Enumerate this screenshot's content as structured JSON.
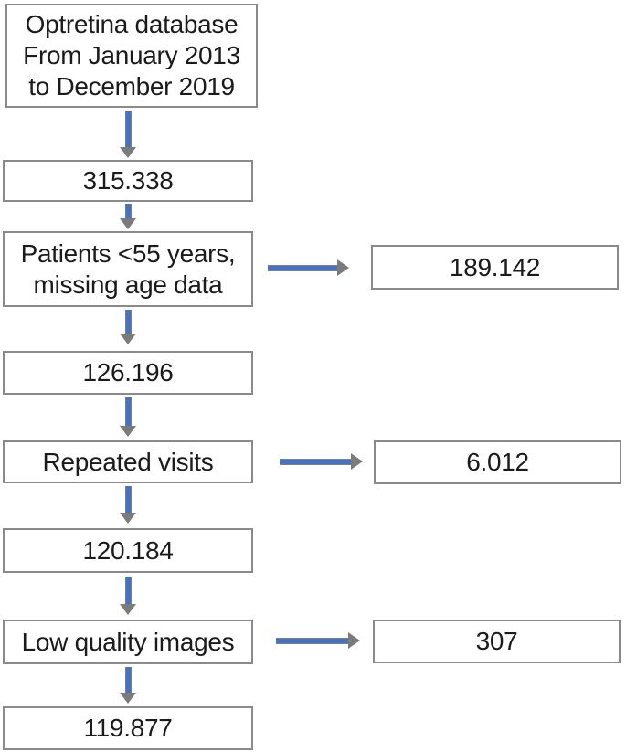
{
  "colors": {
    "arrow_fill": "#4472c4",
    "arrow_outline": "#7f7f7f",
    "box_border": "#8a8a8a",
    "text": "#1b1b1b",
    "background": "#ffffff"
  },
  "flowchart": {
    "type": "study-selection-flow",
    "main_column": [
      {
        "label": "Optretina database\nFrom January 2013\nto December 2019"
      },
      {
        "label": "315.338"
      },
      {
        "label": "Patients <55 years,\nmissing age data"
      },
      {
        "label": "126.196"
      },
      {
        "label": "Repeated visits"
      },
      {
        "label": "120.184"
      },
      {
        "label": "Low quality images"
      },
      {
        "label": "119.877"
      }
    ],
    "side_column": [
      {
        "label": "189.142"
      },
      {
        "label": "6.012"
      },
      {
        "label": "307"
      }
    ]
  }
}
